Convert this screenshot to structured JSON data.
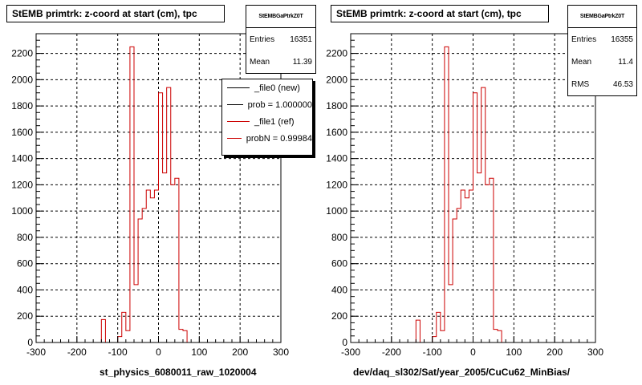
{
  "chart_data": [
    {
      "type": "line",
      "title": "StEMB primtrk: z-coord at start (cm), tpc",
      "xlabel": "st_physics_6080011_raw_1020004",
      "xlim": [
        -300,
        300
      ],
      "ylim": [
        0,
        2350
      ],
      "x_ticks": [
        "-300",
        "-200",
        "-100",
        "0",
        "100",
        "200",
        "300"
      ],
      "y_ticks": [
        "0",
        "200",
        "400",
        "600",
        "800",
        "1000",
        "1200",
        "1400",
        "1600",
        "1800",
        "2000",
        "2200"
      ],
      "grid": true,
      "stats": {
        "name": "StEMBGaPtrkZ0T",
        "rows": [
          {
            "label": "Entries",
            "value": "16351"
          },
          {
            "label": "Mean",
            "value": "11.39"
          }
        ]
      },
      "legend": [
        {
          "label": "_file0 (new)",
          "color": "#000000"
        },
        {
          "label": "prob = 1.000000",
          "color": "#000000"
        },
        {
          "label": "_file1 (ref)",
          "color": "#cc0000"
        },
        {
          "label": "probN = 0.99984",
          "color": "#cc0000"
        }
      ],
      "series": [
        {
          "color": "#cc0000",
          "bin_edges": [
            -140,
            -130,
            -120,
            -110,
            -100,
            -90,
            -80,
            -70,
            -60,
            -50,
            -40,
            -30,
            -20,
            -10,
            0,
            10,
            20,
            30,
            40,
            50,
            60,
            70,
            80,
            90,
            100,
            110
          ],
          "values": [
            175,
            0,
            0,
            0,
            45,
            230,
            90,
            2250,
            440,
            940,
            1020,
            1160,
            1100,
            1160,
            1900,
            1290,
            1940,
            1200,
            1250,
            100,
            90,
            0,
            0,
            0,
            0
          ]
        }
      ]
    },
    {
      "type": "line",
      "title": "StEMB primtrk: z-coord at start (cm), tpc",
      "xlabel": "dev/daq_sl302/Sat/year_2005/CuCu62_MinBias/",
      "xlim": [
        -300,
        300
      ],
      "ylim": [
        0,
        2350
      ],
      "x_ticks": [
        "-300",
        "-200",
        "-100",
        "0",
        "100",
        "200",
        "300"
      ],
      "y_ticks": [
        "0",
        "200",
        "400",
        "600",
        "800",
        "1000",
        "1200",
        "1400",
        "1600",
        "1800",
        "2000",
        "2200"
      ],
      "grid": true,
      "stats": {
        "name": "StEMBGaPtrkZ0T",
        "rows": [
          {
            "label": "Entries",
            "value": "16355"
          },
          {
            "label": "Mean",
            "value": "11.4"
          },
          {
            "label": "RMS",
            "value": "46.53"
          }
        ]
      },
      "series": [
        {
          "color": "#cc0000",
          "bin_edges": [
            -140,
            -130,
            -120,
            -110,
            -100,
            -90,
            -80,
            -70,
            -60,
            -50,
            -40,
            -30,
            -20,
            -10,
            0,
            10,
            20,
            30,
            40,
            50,
            60,
            70,
            80,
            90,
            100,
            110
          ],
          "values": [
            170,
            0,
            0,
            0,
            45,
            230,
            90,
            2250,
            440,
            940,
            1020,
            1160,
            1100,
            1160,
            1900,
            1290,
            1940,
            1200,
            1250,
            100,
            90,
            0,
            0,
            0,
            0
          ]
        }
      ]
    }
  ]
}
